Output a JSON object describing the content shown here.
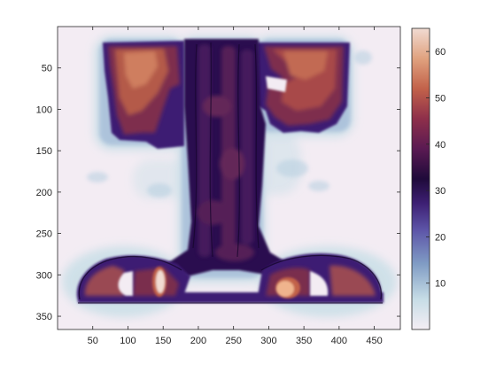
{
  "chart_data": {
    "type": "heatmap",
    "title": "",
    "xlabel": "",
    "ylabel": "",
    "xlim": [
      0,
      487
    ],
    "ylim": [
      366,
      0
    ],
    "y_reversed": true,
    "xticks": [
      50,
      100,
      150,
      200,
      250,
      300,
      350,
      400,
      450
    ],
    "yticks": [
      50,
      100,
      150,
      200,
      250,
      300,
      350
    ],
    "colorbar": {
      "ticks": [
        10,
        20,
        30,
        40,
        50,
        60
      ],
      "range": [
        0,
        65
      ],
      "colormap": [
        "#f4eef4",
        "#c7dde6",
        "#7f9bc4",
        "#5d55a8",
        "#3d1f73",
        "#1f0a3a",
        "#5a1a52",
        "#8e2f4a",
        "#c2624a",
        "#e0a27f",
        "#f1dbd2"
      ]
    },
    "image_description_regions": [
      {
        "region": "central column",
        "x": [
          205,
          290
        ],
        "y": [
          15,
          295
        ],
        "value_range": [
          28,
          38
        ]
      },
      {
        "region": "upper left arm",
        "x": [
          65,
          205
        ],
        "y": [
          15,
          160
        ],
        "value_range": [
          35,
          50
        ]
      },
      {
        "region": "upper right arm",
        "x": [
          290,
          390
        ],
        "y": [
          15,
          145
        ],
        "value_range": [
          35,
          48
        ]
      },
      {
        "region": "lower left lobe",
        "x": [
          80,
          200
        ],
        "y": [
          290,
          345
        ],
        "value_range": [
          30,
          60
        ]
      },
      {
        "region": "lower right lobe",
        "x": [
          290,
          430
        ],
        "y": [
          290,
          345
        ],
        "value_range": [
          30,
          62
        ]
      }
    ],
    "colors": {
      "background": "#f3ecf3",
      "axes": "#262626"
    }
  }
}
